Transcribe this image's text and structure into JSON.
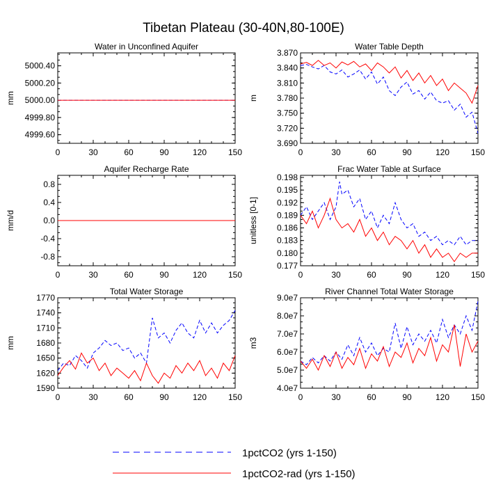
{
  "title": "Tibetan Plateau (30-40N,80-100E)",
  "legend": {
    "placement": "bottom-center",
    "entries": [
      {
        "name": "1pctCO2 (yrs 1-150)",
        "color": "#0000ff",
        "dash": "dashed"
      },
      {
        "name": "1pctCO2-rad (yrs 1-150)",
        "color": "#ff0000",
        "dash": "solid"
      }
    ]
  },
  "chart_data": [
    {
      "type": "line",
      "title": "Water in Unconfined Aquifer",
      "ylabel": "mm",
      "xlim": [
        0,
        150
      ],
      "ylim": [
        4999.5,
        5000.55
      ],
      "xticks": [
        0,
        30,
        60,
        90,
        120,
        150
      ],
      "yticks": [
        4999.6,
        4999.8,
        5000.0,
        5000.2,
        5000.4
      ],
      "ytick_labels": [
        "4999.60",
        "4999.80",
        "5000.00",
        "5000.20",
        "5000.40"
      ],
      "series": [
        {
          "name": "1pctCO2 (yrs 1-150)",
          "x": [
            0,
            150
          ],
          "values": [
            5000.0,
            5000.0
          ]
        },
        {
          "name": "1pctCO2-rad (yrs 1-150)",
          "x": [
            0,
            150
          ],
          "values": [
            5000.0,
            5000.0
          ]
        }
      ]
    },
    {
      "type": "line",
      "title": "Water Table Depth",
      "ylabel": "m",
      "xlim": [
        0,
        150
      ],
      "ylim": [
        3.69,
        3.87
      ],
      "xticks": [
        0,
        30,
        60,
        90,
        120,
        150
      ],
      "yticks": [
        3.69,
        3.72,
        3.75,
        3.78,
        3.81,
        3.84,
        3.87
      ],
      "ytick_labels": [
        "3.690",
        "3.720",
        "3.750",
        "3.780",
        "3.810",
        "3.840",
        "3.870"
      ],
      "series": [
        {
          "name": "1pctCO2 (yrs 1-150)",
          "x": [
            0,
            5,
            10,
            15,
            20,
            25,
            30,
            35,
            40,
            45,
            50,
            55,
            60,
            65,
            70,
            75,
            80,
            85,
            90,
            95,
            100,
            105,
            110,
            115,
            120,
            125,
            130,
            135,
            140,
            145,
            150
          ],
          "values": [
            3.845,
            3.847,
            3.842,
            3.838,
            3.845,
            3.832,
            3.828,
            3.836,
            3.822,
            3.828,
            3.836,
            3.818,
            3.832,
            3.808,
            3.822,
            3.795,
            3.785,
            3.802,
            3.812,
            3.788,
            3.795,
            3.778,
            3.792,
            3.775,
            3.77,
            3.775,
            3.756,
            3.768,
            3.742,
            3.752,
            3.71
          ]
        },
        {
          "name": "1pctCO2-rad (yrs 1-150)",
          "x": [
            0,
            5,
            10,
            15,
            20,
            25,
            30,
            35,
            40,
            45,
            50,
            55,
            60,
            65,
            70,
            75,
            80,
            85,
            90,
            95,
            100,
            105,
            110,
            115,
            120,
            125,
            130,
            135,
            140,
            145,
            150
          ],
          "values": [
            3.848,
            3.851,
            3.845,
            3.855,
            3.845,
            3.85,
            3.84,
            3.852,
            3.846,
            3.853,
            3.842,
            3.848,
            3.835,
            3.85,
            3.842,
            3.83,
            3.842,
            3.82,
            3.835,
            3.815,
            3.83,
            3.81,
            3.825,
            3.805,
            3.818,
            3.795,
            3.81,
            3.8,
            3.79,
            3.77,
            3.805
          ]
        }
      ]
    },
    {
      "type": "line",
      "title": "Aquifer Recharge Rate",
      "ylabel": "mm/d",
      "xlim": [
        0,
        150
      ],
      "ylim": [
        -1.0,
        1.0
      ],
      "xticks": [
        0,
        30,
        60,
        90,
        120,
        150
      ],
      "yticks": [
        -0.8,
        -0.4,
        0.0,
        0.4,
        0.8
      ],
      "ytick_labels": [
        "-0.8",
        "-0.4",
        "0.0",
        "0.4",
        "0.8"
      ],
      "series": [
        {
          "name": "1pctCO2 (yrs 1-150)",
          "x": [
            0,
            150
          ],
          "values": [
            0.0,
            0.0
          ]
        },
        {
          "name": "1pctCO2-rad (yrs 1-150)",
          "x": [
            0,
            150
          ],
          "values": [
            0.0,
            0.0
          ]
        }
      ]
    },
    {
      "type": "line",
      "title": "Frac Water Table at Surface",
      "ylabel": "unitless [0-1]",
      "xlim": [
        0,
        150
      ],
      "ylim": [
        0.177,
        0.1985
      ],
      "xticks": [
        0,
        30,
        60,
        90,
        120,
        150
      ],
      "yticks": [
        0.177,
        0.18,
        0.183,
        0.186,
        0.189,
        0.192,
        0.195,
        0.198
      ],
      "ytick_labels": [
        "0.177",
        "0.180",
        "0.183",
        "0.186",
        "0.189",
        "0.192",
        "0.195",
        "0.198"
      ],
      "series": [
        {
          "name": "1pctCO2 (yrs 1-150)",
          "x": [
            0,
            5,
            10,
            15,
            20,
            25,
            30,
            33,
            35,
            40,
            45,
            50,
            55,
            60,
            65,
            70,
            75,
            80,
            85,
            90,
            95,
            100,
            105,
            110,
            115,
            120,
            125,
            130,
            135,
            140,
            145,
            150
          ],
          "values": [
            0.189,
            0.191,
            0.188,
            0.19,
            0.192,
            0.188,
            0.191,
            0.197,
            0.194,
            0.195,
            0.191,
            0.193,
            0.188,
            0.19,
            0.186,
            0.189,
            0.187,
            0.192,
            0.188,
            0.186,
            0.187,
            0.184,
            0.185,
            0.183,
            0.184,
            0.182,
            0.183,
            0.182,
            0.184,
            0.182,
            0.183,
            0.183
          ]
        },
        {
          "name": "1pctCO2-rad (yrs 1-150)",
          "x": [
            0,
            5,
            10,
            15,
            20,
            25,
            30,
            35,
            40,
            45,
            50,
            55,
            60,
            65,
            70,
            75,
            80,
            85,
            90,
            95,
            100,
            105,
            110,
            115,
            120,
            125,
            130,
            135,
            140,
            145,
            150
          ],
          "values": [
            0.189,
            0.187,
            0.19,
            0.186,
            0.189,
            0.193,
            0.188,
            0.186,
            0.187,
            0.185,
            0.188,
            0.184,
            0.186,
            0.183,
            0.185,
            0.182,
            0.184,
            0.183,
            0.181,
            0.183,
            0.18,
            0.182,
            0.179,
            0.181,
            0.179,
            0.18,
            0.178,
            0.18,
            0.179,
            0.18,
            0.18
          ]
        }
      ]
    },
    {
      "type": "line",
      "title": "Total Water Storage",
      "ylabel": "mm",
      "xlim": [
        0,
        150
      ],
      "ylim": [
        1590,
        1770
      ],
      "xticks": [
        0,
        30,
        60,
        90,
        120,
        150
      ],
      "yticks": [
        1590,
        1620,
        1650,
        1680,
        1710,
        1740,
        1770
      ],
      "ytick_labels": [
        "1590",
        "1620",
        "1650",
        "1680",
        "1710",
        "1740",
        "1770"
      ],
      "series": [
        {
          "name": "1pctCO2 (yrs 1-150)",
          "x": [
            0,
            5,
            10,
            15,
            20,
            25,
            30,
            35,
            40,
            45,
            50,
            55,
            60,
            65,
            70,
            75,
            80,
            85,
            90,
            95,
            100,
            105,
            110,
            115,
            120,
            125,
            130,
            135,
            140,
            145,
            150
          ],
          "values": [
            1625,
            1640,
            1635,
            1655,
            1645,
            1630,
            1660,
            1670,
            1685,
            1675,
            1680,
            1665,
            1670,
            1650,
            1660,
            1640,
            1730,
            1690,
            1700,
            1680,
            1705,
            1720,
            1700,
            1690,
            1725,
            1700,
            1720,
            1700,
            1715,
            1725,
            1745
          ]
        },
        {
          "name": "1pctCO2-rad (yrs 1-150)",
          "x": [
            0,
            5,
            10,
            15,
            20,
            25,
            30,
            35,
            40,
            45,
            50,
            55,
            60,
            65,
            70,
            75,
            80,
            85,
            90,
            95,
            100,
            105,
            110,
            115,
            120,
            125,
            130,
            135,
            140,
            145,
            150
          ],
          "values": [
            1615,
            1632,
            1645,
            1628,
            1660,
            1640,
            1650,
            1625,
            1640,
            1615,
            1630,
            1620,
            1610,
            1625,
            1605,
            1640,
            1615,
            1600,
            1620,
            1610,
            1635,
            1620,
            1640,
            1625,
            1645,
            1615,
            1630,
            1610,
            1640,
            1625,
            1655
          ]
        }
      ]
    },
    {
      "type": "line",
      "title": "River Channel Total Water Storage",
      "ylabel": "m3",
      "xlim": [
        0,
        150
      ],
      "ylim": [
        40000000,
        90000000
      ],
      "xticks": [
        0,
        30,
        60,
        90,
        120,
        150
      ],
      "yticks": [
        40000000,
        50000000,
        60000000,
        70000000,
        80000000,
        90000000
      ],
      "ytick_labels": [
        "4.0e7",
        "5.0e7",
        "6.0e7",
        "7.0e7",
        "8.0e7",
        "9.0e7"
      ],
      "series": [
        {
          "name": "1pctCO2 (yrs 1-150)",
          "x": [
            0,
            5,
            10,
            15,
            20,
            25,
            30,
            35,
            40,
            45,
            50,
            55,
            60,
            65,
            70,
            75,
            80,
            85,
            90,
            95,
            100,
            105,
            110,
            115,
            120,
            125,
            130,
            135,
            140,
            145,
            150
          ],
          "values": [
            55000000,
            53000000,
            57000000,
            54000000,
            58000000,
            55000000,
            60000000,
            56000000,
            64000000,
            58000000,
            68000000,
            60000000,
            65000000,
            58000000,
            62000000,
            60000000,
            76000000,
            62000000,
            74000000,
            64000000,
            70000000,
            66000000,
            72000000,
            65000000,
            78000000,
            68000000,
            75000000,
            70000000,
            80000000,
            72000000,
            88000000
          ]
        },
        {
          "name": "1pctCO2-rad (yrs 1-150)",
          "x": [
            0,
            5,
            10,
            15,
            20,
            25,
            30,
            35,
            40,
            45,
            50,
            55,
            60,
            65,
            70,
            75,
            80,
            85,
            90,
            95,
            100,
            105,
            110,
            115,
            120,
            125,
            130,
            135,
            140,
            145,
            150
          ],
          "values": [
            55000000,
            51000000,
            56000000,
            50000000,
            58000000,
            52000000,
            60000000,
            51000000,
            57000000,
            53000000,
            62000000,
            51000000,
            59000000,
            55000000,
            63000000,
            52000000,
            60000000,
            57000000,
            65000000,
            54000000,
            62000000,
            58000000,
            68000000,
            55000000,
            64000000,
            60000000,
            75000000,
            52000000,
            70000000,
            60000000,
            66000000
          ]
        }
      ]
    }
  ]
}
